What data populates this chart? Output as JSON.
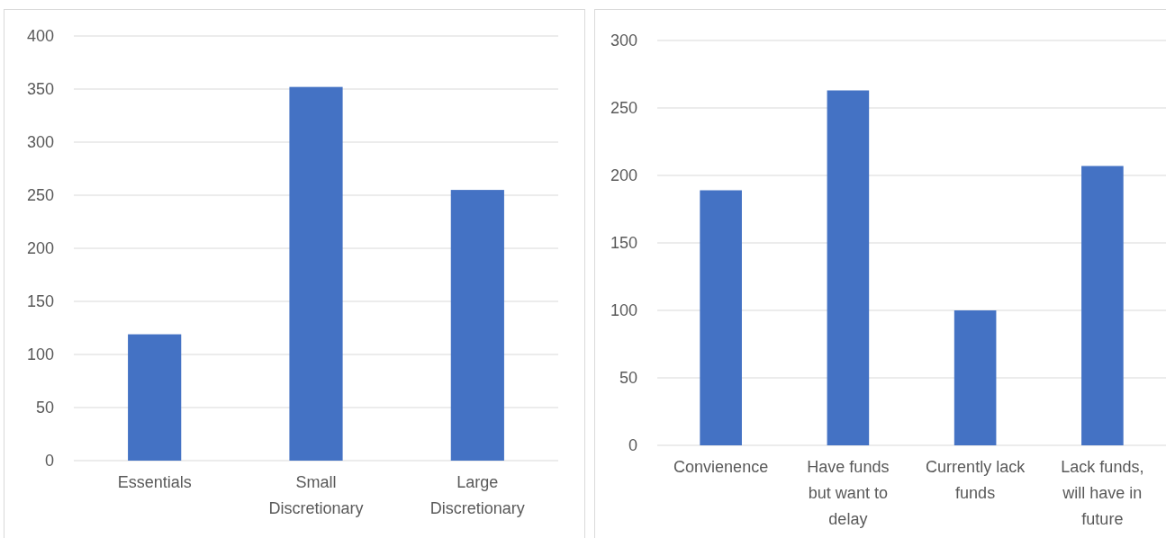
{
  "chart_data": [
    {
      "type": "bar",
      "categories": [
        "Essentials",
        "Small Discretionary",
        "Large Discretionary"
      ],
      "values": [
        119,
        352,
        255
      ],
      "color": "#4472c4",
      "ylim": [
        0,
        400
      ],
      "yticks": [
        0,
        50,
        100,
        150,
        200,
        250,
        300,
        350,
        400
      ],
      "grid": "y"
    },
    {
      "type": "bar",
      "categories": [
        "Convienence",
        "Have funds but want to delay",
        "Currently lack funds",
        "Lack funds, will have in future"
      ],
      "values": [
        189,
        263,
        100,
        207
      ],
      "color": "#4472c4",
      "ylim": [
        0,
        300
      ],
      "yticks": [
        0,
        50,
        100,
        150,
        200,
        250,
        300
      ],
      "grid": "y"
    }
  ]
}
